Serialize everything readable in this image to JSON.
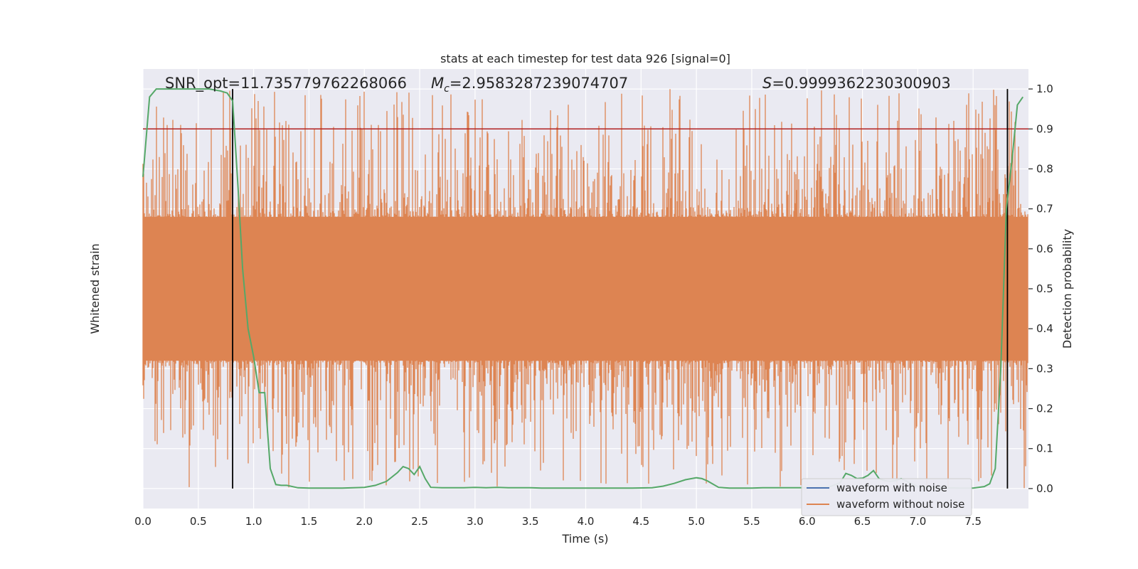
{
  "chart_data": {
    "type": "line",
    "title": "stats at each timestep for test data 926 [signal=0]",
    "xlabel": "Time (s)",
    "ylabel_left": "Whitened strain",
    "ylabel_right": "Detection probability",
    "xlim": [
      0,
      8
    ],
    "ylim_right": [
      -0.05,
      1.05
    ],
    "x_ticks": [
      0.0,
      0.5,
      1.0,
      1.5,
      2.0,
      2.5,
      3.0,
      3.5,
      4.0,
      4.5,
      5.0,
      5.5,
      6.0,
      6.5,
      7.0,
      7.5
    ],
    "x_tick_labels": [
      "0.0",
      "0.5",
      "1.0",
      "1.5",
      "2.0",
      "2.5",
      "3.0",
      "3.5",
      "4.0",
      "4.5",
      "5.0",
      "5.5",
      "6.0",
      "6.5",
      "7.0",
      "7.5"
    ],
    "y_right_ticks": [
      0.0,
      0.1,
      0.2,
      0.3,
      0.4,
      0.5,
      0.6,
      0.7,
      0.8,
      0.9,
      1.0
    ],
    "y_right_tick_labels": [
      "0.0",
      "0.1",
      "0.2",
      "0.3",
      "0.4",
      "0.5",
      "0.6",
      "0.7",
      "0.8",
      "0.9",
      "1.0"
    ],
    "grid": true,
    "legend_position": "lower-right",
    "annotations": {
      "snr": "SNR_opt=11.735779762268066",
      "mc_symbol": "M",
      "mc_subscript": "c",
      "mc_value": "=2.9583287239074707",
      "s_symbol": "S",
      "s_value": "=0.9999362230300903"
    },
    "threshold": {
      "value": 0.9,
      "color": "#b22222"
    },
    "vertical_lines": [
      0.81,
      7.81
    ],
    "series": [
      {
        "name": "waveform with noise",
        "color": "#4c72b0",
        "values": []
      },
      {
        "name": "waveform without noise",
        "color": "#dd8452",
        "noise_band": {
          "center": 0.5,
          "half_width_min": 0.18,
          "half_width_max": 0.5,
          "t_start": 0,
          "t_end": 8
        }
      },
      {
        "name": "",
        "color": "#55a868",
        "axis": "right",
        "x": [
          0.0,
          0.06,
          0.12,
          0.2,
          0.3,
          0.4,
          0.5,
          0.6,
          0.7,
          0.76,
          0.81,
          0.86,
          0.9,
          0.95,
          1.0,
          1.05,
          1.1,
          1.15,
          1.2,
          1.25,
          1.3,
          1.4,
          1.5,
          1.6,
          1.7,
          1.8,
          1.9,
          2.0,
          2.1,
          2.2,
          2.3,
          2.35,
          2.4,
          2.45,
          2.5,
          2.55,
          2.6,
          2.7,
          2.8,
          2.9,
          3.0,
          3.1,
          3.2,
          3.3,
          3.4,
          3.5,
          3.6,
          3.8,
          4.0,
          4.2,
          4.4,
          4.6,
          4.7,
          4.8,
          4.9,
          5.0,
          5.05,
          5.1,
          5.2,
          5.3,
          5.4,
          5.5,
          5.6,
          5.8,
          6.0,
          6.2,
          6.3,
          6.35,
          6.4,
          6.45,
          6.5,
          6.55,
          6.6,
          6.65,
          6.7,
          6.75,
          6.8,
          6.85,
          6.9,
          7.0,
          7.2,
          7.4,
          7.5,
          7.6,
          7.65,
          7.7,
          7.75,
          7.8,
          7.85,
          7.9,
          7.95
        ],
        "values": [
          0.78,
          0.98,
          1.0,
          1.0,
          1.0,
          1.0,
          1.0,
          1.0,
          0.995,
          0.99,
          0.97,
          0.75,
          0.55,
          0.4,
          0.33,
          0.24,
          0.24,
          0.05,
          0.01,
          0.008,
          0.008,
          0.002,
          0.001,
          0.001,
          0.001,
          0.001,
          0.002,
          0.003,
          0.008,
          0.018,
          0.04,
          0.055,
          0.05,
          0.035,
          0.055,
          0.025,
          0.003,
          0.002,
          0.002,
          0.002,
          0.003,
          0.002,
          0.003,
          0.002,
          0.002,
          0.002,
          0.001,
          0.001,
          0.001,
          0.001,
          0.001,
          0.002,
          0.006,
          0.013,
          0.022,
          0.027,
          0.025,
          0.019,
          0.003,
          0.001,
          0.001,
          0.001,
          0.002,
          0.002,
          0.002,
          0.004,
          0.015,
          0.038,
          0.033,
          0.025,
          0.026,
          0.033,
          0.045,
          0.025,
          0.02,
          0.018,
          0.02,
          0.025,
          0.018,
          0.005,
          0.002,
          0.001,
          0.001,
          0.005,
          0.012,
          0.05,
          0.3,
          0.7,
          0.82,
          0.96,
          0.98
        ]
      }
    ]
  }
}
